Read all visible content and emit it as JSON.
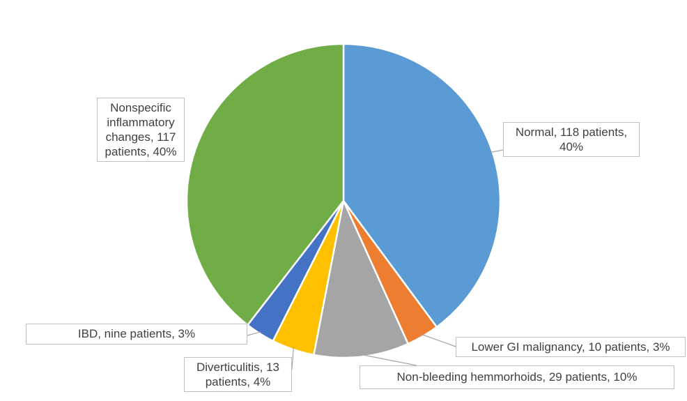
{
  "chart_data": {
    "type": "pie",
    "title": "",
    "slices": [
      {
        "label": "Normal, 118 patients, 40%",
        "value": 118,
        "percent": 40,
        "color": "#5b9bd5"
      },
      {
        "label": "Lower GI malignancy, 10 patients, 3%",
        "value": 10,
        "percent": 3,
        "color": "#ed7d31"
      },
      {
        "label": "Non-bleeding hemmorhoids, 29 patients, 10%",
        "value": 29,
        "percent": 10,
        "color": "#a5a5a5"
      },
      {
        "label": "Diverticulitis, 13 patients, 4%",
        "value": 13,
        "percent": 4,
        "color": "#ffc000"
      },
      {
        "label": "IBD, nine patients, 3%",
        "value": 9,
        "percent": 3,
        "color": "#4472c4"
      },
      {
        "label": "Nonspecific inflammatory changes, 117 patients, 40%",
        "value": 117,
        "percent": 40,
        "color": "#70ad47"
      }
    ],
    "legend": "none",
    "start_angle_deg": 0,
    "direction": "clockwise"
  }
}
